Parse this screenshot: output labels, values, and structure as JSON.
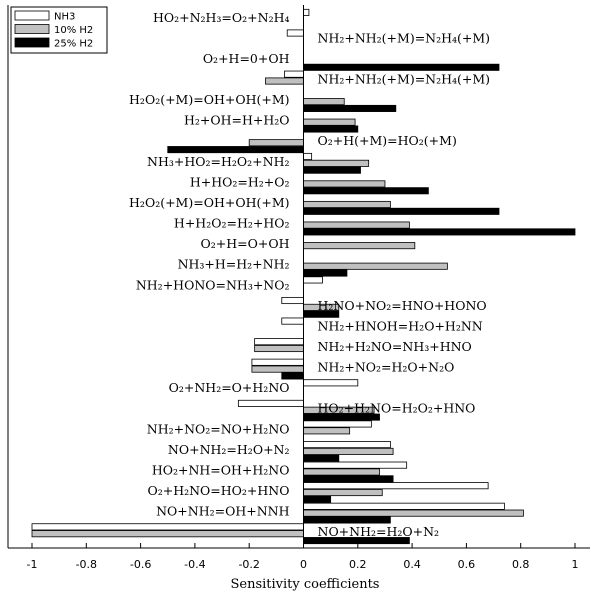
{
  "chart_data": {
    "type": "bar",
    "orientation": "horizontal",
    "xlabel": "Sensitivity coefficients",
    "xlim": [
      -1.02,
      1.02
    ],
    "xticks": [
      "-1",
      "-0.8",
      "-0.6",
      "-0.4",
      "-0.2",
      "0",
      "0.2",
      "0.4",
      "0.6",
      "0.8",
      "1"
    ],
    "legend_position": "top-left",
    "series": [
      {
        "name": "NH3",
        "color": "#ffffff"
      },
      {
        "name": "10% H2",
        "color": "#c0c0c0"
      },
      {
        "name": "25% H2",
        "color": "#000000"
      }
    ],
    "reactions": [
      {
        "label": "HO₂+N₂H₃=O₂+N₂H₄",
        "side": "left",
        "values": [
          0.02,
          null,
          null
        ]
      },
      {
        "label": "NH₂+NH₂(+M)=N₂H₄(+M)",
        "side": "right",
        "values": [
          -0.06,
          null,
          null
        ]
      },
      {
        "label": "O₂+H=0+OH",
        "side": "left",
        "values": [
          null,
          null,
          0.72
        ]
      },
      {
        "label": "NH₂+NH₂(+M)=N₂H₄(+M)",
        "side": "right",
        "values": [
          -0.07,
          -0.14,
          null
        ]
      },
      {
        "label": "H₂O₂(+M)=OH+OH(+M)",
        "side": "left",
        "values": [
          null,
          0.15,
          0.34
        ]
      },
      {
        "label": "H₂+OH=H+H₂O",
        "side": "left",
        "values": [
          null,
          0.19,
          0.2
        ]
      },
      {
        "label": "O₂+H(+M)=HO₂(+M)",
        "side": "right",
        "values": [
          null,
          -0.2,
          -0.5
        ]
      },
      {
        "label": "NH₃+HO₂=H₂O₂+NH₂",
        "side": "left",
        "values": [
          0.03,
          0.24,
          0.21
        ]
      },
      {
        "label": "H+HO₂=H₂+O₂",
        "side": "left",
        "values": [
          null,
          0.3,
          0.46
        ]
      },
      {
        "label": "H₂O₂(+M)=OH+OH(+M)",
        "side": "left",
        "values": [
          null,
          0.32,
          0.72
        ]
      },
      {
        "label": "H+H₂O₂=H₂+HO₂",
        "side": "left",
        "values": [
          null,
          0.39,
          1.0
        ]
      },
      {
        "label": "O₂+H=O+OH",
        "side": "left",
        "values": [
          null,
          0.41,
          null
        ]
      },
      {
        "label": "NH₃+H=H₂+NH₂",
        "side": "left",
        "values": [
          null,
          0.53,
          0.16
        ]
      },
      {
        "label": "NH₂+HONO=NH₃+NO₂",
        "side": "left",
        "values": [
          0.07,
          null,
          null
        ]
      },
      {
        "label": "H₂NO+NO₂=HNO+HONO",
        "side": "right",
        "values": [
          -0.08,
          0.13,
          0.13
        ]
      },
      {
        "label": "NH₂+HNOH=H₂O+H₂NN",
        "side": "right",
        "values": [
          -0.08,
          null,
          null
        ]
      },
      {
        "label": "NH₂+H₂NO=NH₃+HNO",
        "side": "right",
        "values": [
          -0.18,
          -0.18,
          null
        ]
      },
      {
        "label": "NH₂+NO₂=H₂O+N₂O",
        "side": "right",
        "values": [
          -0.19,
          -0.19,
          -0.08
        ]
      },
      {
        "label": "O₂+NH₂=O+H₂NO",
        "side": "left",
        "values": [
          0.2,
          null,
          null
        ]
      },
      {
        "label": "HO₂+H₂NO=H₂O₂+HNO",
        "side": "right",
        "values": [
          -0.24,
          0.26,
          0.28
        ]
      },
      {
        "label": "NH₂+NO₂=NO+H₂NO",
        "side": "left",
        "values": [
          0.25,
          0.17,
          null
        ]
      },
      {
        "label": "NO+NH₂=H₂O+N₂",
        "side": "left",
        "values": [
          0.32,
          0.33,
          0.13
        ]
      },
      {
        "label": "HO₂+NH=OH+H₂NO",
        "side": "left",
        "values": [
          0.38,
          0.28,
          0.33
        ]
      },
      {
        "label": "O₂+H₂NO=HO₂+HNO",
        "side": "left",
        "values": [
          0.68,
          0.29,
          0.1
        ]
      },
      {
        "label": "NO+NH₂=OH+NNH",
        "side": "left",
        "values": [
          0.74,
          0.81,
          0.32
        ]
      },
      {
        "label": "NO+NH₂=H₂O+N₂",
        "side": "right",
        "values": [
          -1.0,
          -1.0,
          0.39
        ]
      }
    ]
  }
}
